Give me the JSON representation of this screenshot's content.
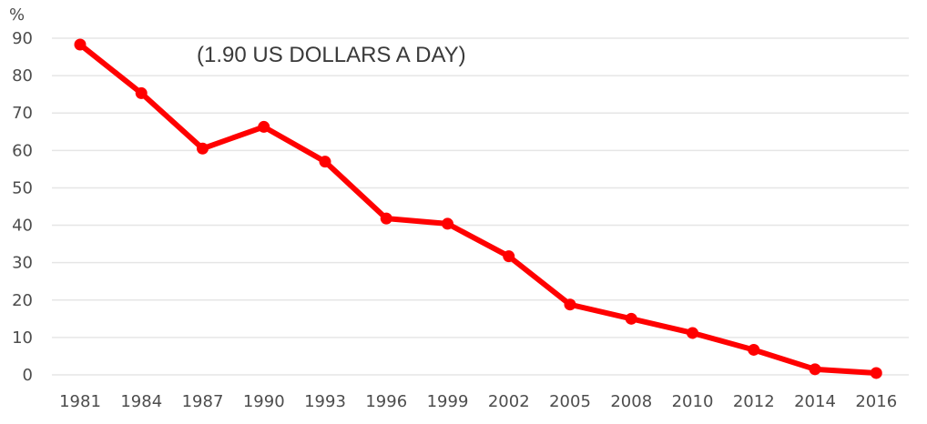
{
  "chart_data": {
    "type": "line",
    "title": "",
    "annotation": "(1.90 US DOLLARS A DAY)",
    "y_unit": "%",
    "xlabel": "",
    "ylabel": "",
    "categories": [
      "1981",
      "1984",
      "1987",
      "1990",
      "1993",
      "1996",
      "1999",
      "2002",
      "2005",
      "2008",
      "2010",
      "2012",
      "2014",
      "2016"
    ],
    "series": [
      {
        "values": [
          88.3,
          75.3,
          60.5,
          66.3,
          57.0,
          41.8,
          40.4,
          31.7,
          18.8,
          15.0,
          11.2,
          6.7,
          1.5,
          0.5
        ],
        "color": "#ff0000"
      }
    ],
    "y_ticks": [
      "0",
      "10",
      "20",
      "30",
      "40",
      "50",
      "60",
      "70",
      "80",
      "90"
    ],
    "ylim": [
      0,
      90
    ],
    "grid": true,
    "legend": "none"
  }
}
